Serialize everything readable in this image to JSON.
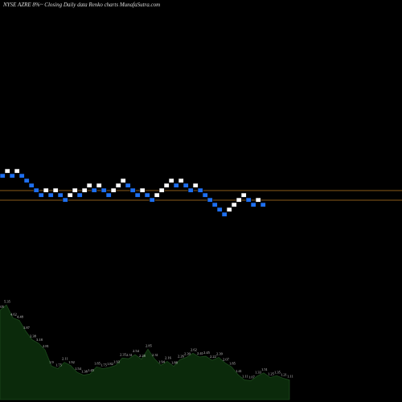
{
  "chart_data": {
    "type": "renko",
    "title": "NYSE AZRE 8%~  Closing Daily data  Renko  charts MunafaSutra.com",
    "bricks": [
      4,
      5,
      4,
      5,
      4,
      3,
      2,
      1,
      0,
      1,
      0,
      1,
      0,
      -1,
      0,
      1,
      0,
      1,
      2,
      1,
      2,
      1,
      0,
      1,
      2,
      3,
      2,
      1,
      0,
      1,
      0,
      -1,
      0,
      1,
      2,
      3,
      2,
      3,
      2,
      1,
      2,
      1,
      0,
      -1,
      -2,
      -3,
      -4,
      -3,
      -2,
      -1,
      0,
      -1,
      -2,
      -1,
      -2
    ],
    "up_color": "#ffffff",
    "down_color": "#1e6ff0",
    "ref_lines": [
      1,
      -1
    ],
    "ref_color": "#8a5a1a",
    "volume": {
      "color": "#0b2a0b",
      "line_color": "#1c4a1c",
      "values": [
        5.05,
        5.35,
        4.62,
        4.48,
        3.87,
        3.38,
        3.18,
        2.81,
        1.9,
        1.75,
        2.11,
        1.92,
        1.54,
        1.38,
        1.45,
        1.85,
        1.75,
        1.82,
        1.93,
        2.35,
        2.31,
        2.54,
        2.28,
        2.85,
        2.31,
        1.94,
        2.16,
        1.88,
        2.26,
        2.39,
        2.62,
        2.41,
        2.45,
        2.22,
        2.39,
        2.07,
        1.85,
        1.41,
        1.11,
        1.07,
        1.33,
        1.51,
        1.25,
        1.35,
        1.21,
        1.11
      ],
      "ylim": [
        0,
        6
      ]
    }
  }
}
